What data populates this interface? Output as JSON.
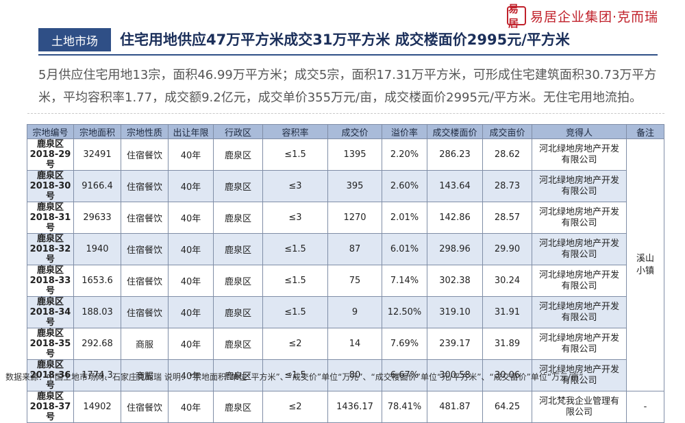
{
  "header": {
    "logo_mark": "易居",
    "logo_text": "易居企业集团·克而瑞",
    "tag": "土地市场",
    "headline": "住宅用地供应47万平方米成交31万平方米 成交楼面价2995元/平方米"
  },
  "summary": "5月供应住宅用地13宗，面积46.99万平方米；成交5宗，面积17.31万平方米，可形成住宅建筑面积30.73万平方米，平均容积率1.77，成交额9.2亿元，成交单价355万元/亩，成交楼面价2995元/平方米。无住宅用地流拍。",
  "table": {
    "headers": [
      "宗地编号",
      "宗地面积",
      "宗地性质",
      "出让年限",
      "行政区",
      "容积率",
      "成交价",
      "溢价率",
      "成交楼面价",
      "成交亩价",
      "竞得人",
      "备注"
    ],
    "rows": [
      {
        "code_a": "鹿泉区",
        "code_b": "2018-29号",
        "area": "32491",
        "use": "住宿餐饮",
        "term": "40年",
        "district": "鹿泉区",
        "far": "≤1.5",
        "price": "1395",
        "premium": "2.20%",
        "floor_price": "286.23",
        "mu_price": "28.62",
        "winner_a": "河北绿地房地产开发",
        "winner_b": "有限公司"
      },
      {
        "code_a": "鹿泉区",
        "code_b": "2018-30号",
        "area": "9166.4",
        "use": "住宿餐饮",
        "term": "40年",
        "district": "鹿泉区",
        "far": "≤3",
        "price": "395",
        "premium": "2.60%",
        "floor_price": "143.64",
        "mu_price": "28.73",
        "winner_a": "河北绿地房地产开发",
        "winner_b": "有限公司"
      },
      {
        "code_a": "鹿泉区",
        "code_b": "2018-31号",
        "area": "29633",
        "use": "住宿餐饮",
        "term": "40年",
        "district": "鹿泉区",
        "far": "≤3",
        "price": "1270",
        "premium": "2.01%",
        "floor_price": "142.86",
        "mu_price": "28.57",
        "winner_a": "河北绿地房地产开发",
        "winner_b": "有限公司"
      },
      {
        "code_a": "鹿泉区",
        "code_b": "2018-32号",
        "area": "1940",
        "use": "住宿餐饮",
        "term": "40年",
        "district": "鹿泉区",
        "far": "≤1.5",
        "price": "87",
        "premium": "6.01%",
        "floor_price": "298.96",
        "mu_price": "29.90",
        "winner_a": "河北绿地房地产开发",
        "winner_b": "有限公司"
      },
      {
        "code_a": "鹿泉区",
        "code_b": "2018-33号",
        "area": "1653.6",
        "use": "住宿餐饮",
        "term": "40年",
        "district": "鹿泉区",
        "far": "≤1.5",
        "price": "75",
        "premium": "7.14%",
        "floor_price": "302.38",
        "mu_price": "30.24",
        "winner_a": "河北绿地房地产开发",
        "winner_b": "有限公司"
      },
      {
        "code_a": "鹿泉区",
        "code_b": "2018-34号",
        "area": "188.03",
        "use": "住宿餐饮",
        "term": "40年",
        "district": "鹿泉区",
        "far": "≤1.5",
        "price": "9",
        "premium": "12.50%",
        "floor_price": "319.10",
        "mu_price": "31.91",
        "winner_a": "河北绿地房地产开发",
        "winner_b": "有限公司"
      },
      {
        "code_a": "鹿泉区",
        "code_b": "2018-35号",
        "area": "292.68",
        "use": "商服",
        "term": "40年",
        "district": "鹿泉区",
        "far": "≤2",
        "price": "14",
        "premium": "7.69%",
        "floor_price": "239.17",
        "mu_price": "31.89",
        "winner_a": "河北绿地房地产开发",
        "winner_b": "有限公司"
      },
      {
        "code_a": "鹿泉区",
        "code_b": "2018-36号",
        "area": "1774.3",
        "use": "商服",
        "term": "40年",
        "district": "鹿泉区",
        "far": "≤1.5",
        "price": "80",
        "premium": "6.67%",
        "floor_price": "300.58",
        "mu_price": "30.06",
        "winner_a": "河北绿地房地产开发",
        "winner_b": "有限公司"
      },
      {
        "code_a": "鹿泉区",
        "code_b": "2018-37号",
        "area": "14902",
        "use": "住宿餐饮",
        "term": "40年",
        "district": "鹿泉区",
        "far": "≤2",
        "price": "1436.17",
        "premium": "78.41%",
        "floor_price": "481.87",
        "mu_price": "64.25",
        "winner_a": "河北梵我企业管理有",
        "winner_b": "限公司"
      }
    ],
    "note_group": "溪山小镇",
    "note_last": "-"
  },
  "footer": "数据来源：中国土地市场网、石家庄克而瑞 说明：“宗地面积”单位“平方米”、“成交价”单位“万元”、“成交楼面价”单位“元/平方米”、“成交亩价”单位“万元/亩”"
}
